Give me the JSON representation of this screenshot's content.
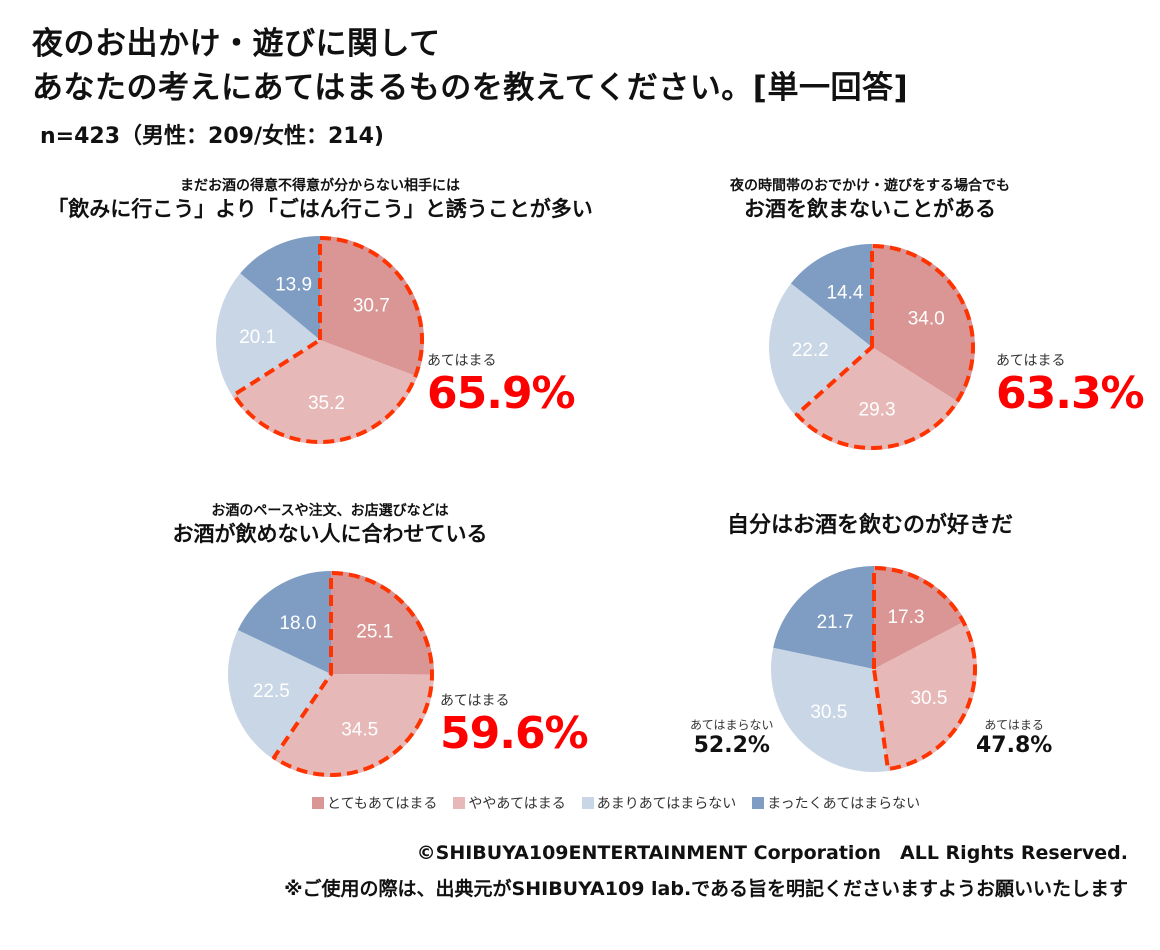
{
  "header": {
    "title_line1": "夜のお出かけ・遊びに関して",
    "title_line2": "あなたの考えにあてはまるものを教えてください。[単一回答]",
    "sample": "n=423（男性：209/女性：214)"
  },
  "colors": {
    "totemo": "#D99694",
    "yaya": "#E6B9B8",
    "amari": "#C9D6E6",
    "mattaku": "#7F9CC2",
    "dash": "#FF3300",
    "highlight": "#FF0000"
  },
  "legend": [
    {
      "label": "とてもあてはまる",
      "color": "#D99694"
    },
    {
      "label": "ややあてはまる",
      "color": "#E6B9B8"
    },
    {
      "label": "あまりあてはまらない",
      "color": "#C9D6E6"
    },
    {
      "label": "まったくあてはまらない",
      "color": "#7F9CC2"
    }
  ],
  "chart_data": [
    {
      "type": "pie",
      "title_small": "まだお酒の得意不得意が分からない相手には",
      "title_large": "「飲みに行こう」より「ごはん行こう」と誘うことが多い",
      "categories": [
        "とてもあてはまる",
        "ややあてはまる",
        "あまりあてはまらない",
        "まったくあてはまらない"
      ],
      "values": [
        30.7,
        35.2,
        20.1,
        13.9
      ],
      "value_labels": [
        "30.7",
        "35.2",
        "20.1",
        "13.9"
      ],
      "annotation_label": "あてはまる",
      "annotation_value": "65.9%"
    },
    {
      "type": "pie",
      "title_small": "夜の時間帯のおでかけ・遊びをする場合でも",
      "title_large": "お酒を飲まないことがある",
      "categories": [
        "とてもあてはまる",
        "ややあてはまる",
        "あまりあてはまらない",
        "まったくあてはまらない"
      ],
      "values": [
        34.0,
        29.3,
        22.2,
        14.4
      ],
      "value_labels": [
        "34.0",
        "29.3",
        "22.2",
        "14.4"
      ],
      "annotation_label": "あてはまる",
      "annotation_value": "63.3%"
    },
    {
      "type": "pie",
      "title_small": "お酒のペースや注文、お店選びなどは",
      "title_large": "お酒が飲めない人に合わせている",
      "categories": [
        "とてもあてはまる",
        "ややあてはまる",
        "あまりあてはまらない",
        "まったくあてはまらない"
      ],
      "values": [
        25.1,
        34.5,
        22.5,
        18.0
      ],
      "value_labels": [
        "25.1",
        "34.5",
        "22.5",
        "18.0"
      ],
      "annotation_label": "あてはまる",
      "annotation_value": "59.6%"
    },
    {
      "type": "pie",
      "title_small": "",
      "title_large": "自分はお酒を飲むのが好きだ",
      "categories": [
        "とてもあてはまる",
        "ややあてはまる",
        "あまりあてはまらない",
        "まったくあてはまらない"
      ],
      "values": [
        17.3,
        30.5,
        30.5,
        21.7
      ],
      "value_labels": [
        "17.3",
        "30.5",
        "30.5",
        "21.7"
      ],
      "annotation_label": "あてはまる",
      "annotation_value": "47.8%",
      "annotation2_label": "あてはまらない",
      "annotation2_value": "52.2%"
    }
  ],
  "footer": {
    "copyright": "©SHIBUYA109ENTERTAINMENT Corporation　ALL Rights Reserved.",
    "note": "※ご使用の際は、出典元がSHIBUYA109 lab.である旨を明記くださいますようお願いいたします"
  }
}
